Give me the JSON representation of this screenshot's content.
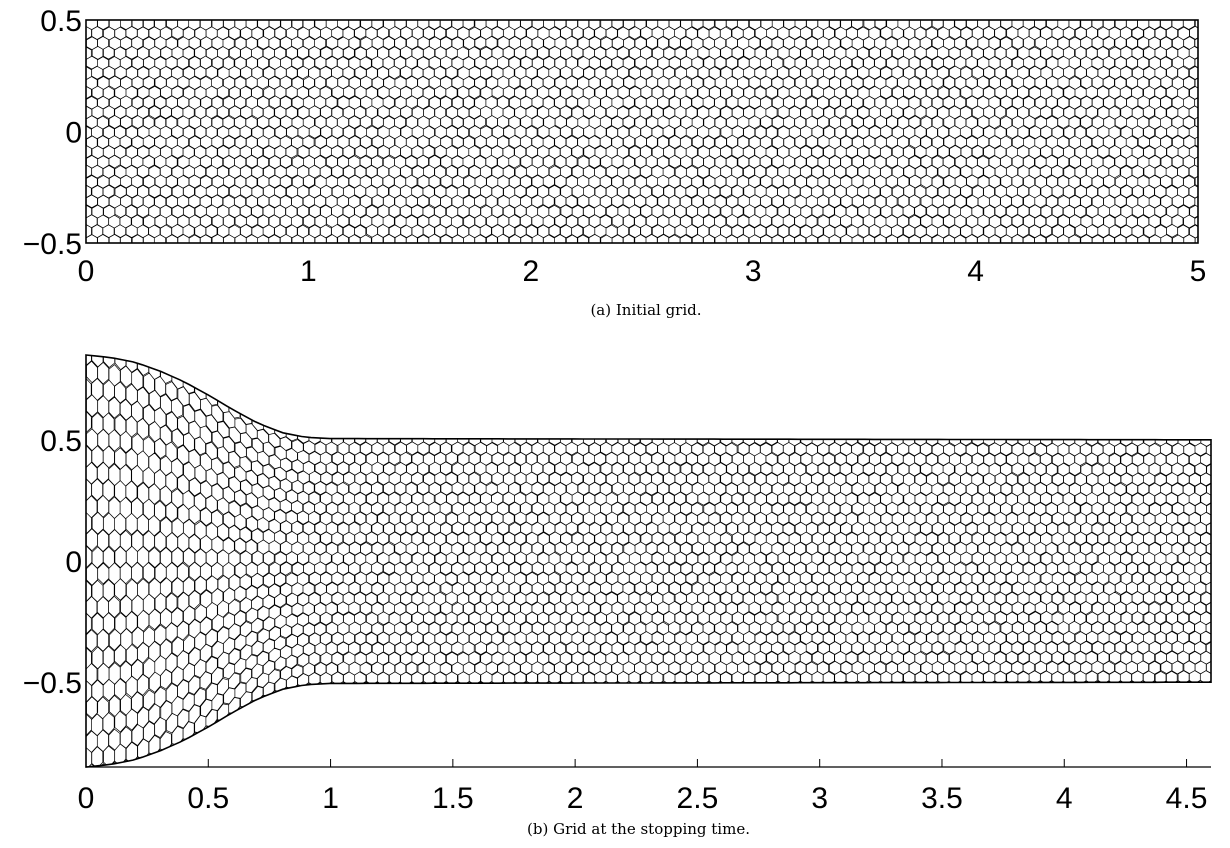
{
  "chart_data": [
    {
      "type": "mesh",
      "panel": "a",
      "caption": "(a) Initial grid.",
      "cell_shape": "hexagonal (Voronoi) cells",
      "x_ticks": [
        0,
        1,
        2,
        3,
        4,
        5
      ],
      "x_tick_labels": [
        "0",
        "1",
        "2",
        "3",
        "4",
        "5"
      ],
      "y_ticks": [
        -0.5,
        0,
        0.5
      ],
      "y_tick_labels": [
        "−0.5",
        "0",
        "0.5"
      ],
      "xlim": [
        0,
        5
      ],
      "ylim": [
        -0.5,
        0.5
      ],
      "domain_outline": "rectangle [0,5] x [-0.5,0.5]"
    },
    {
      "type": "mesh",
      "panel": "b",
      "caption": "(b) Grid at the stopping time.",
      "cell_shape": "hexagonal (Voronoi) cells, compressed near left edge",
      "x_ticks": [
        0,
        0.5,
        1,
        1.5,
        2,
        2.5,
        3,
        3.5,
        4,
        4.5
      ],
      "x_tick_labels": [
        "0",
        "0.5",
        "1",
        "1.5",
        "2",
        "2.5",
        "3",
        "3.5",
        "4",
        "4.5"
      ],
      "y_ticks": [
        -0.5,
        0,
        0.5
      ],
      "y_tick_labels": [
        "−0.5",
        "0",
        "0.5"
      ],
      "xlim": [
        0,
        4.6
      ],
      "ylim": [
        -0.85,
        0.85
      ],
      "upper_boundary": [
        [
          0,
          0.85
        ],
        [
          0.1,
          0.84
        ],
        [
          0.2,
          0.82
        ],
        [
          0.3,
          0.785
        ],
        [
          0.4,
          0.74
        ],
        [
          0.5,
          0.685
        ],
        [
          0.6,
          0.625
        ],
        [
          0.7,
          0.57
        ],
        [
          0.8,
          0.53
        ],
        [
          0.9,
          0.51
        ],
        [
          1.0,
          0.505
        ],
        [
          4.6,
          0.5
        ]
      ],
      "lower_boundary": [
        [
          0,
          -0.85
        ],
        [
          0.1,
          -0.84
        ],
        [
          0.2,
          -0.82
        ],
        [
          0.3,
          -0.785
        ],
        [
          0.4,
          -0.74
        ],
        [
          0.5,
          -0.685
        ],
        [
          0.6,
          -0.625
        ],
        [
          0.7,
          -0.57
        ],
        [
          0.8,
          -0.53
        ],
        [
          0.9,
          -0.51
        ],
        [
          1.0,
          -0.505
        ],
        [
          4.6,
          -0.5
        ]
      ]
    }
  ]
}
